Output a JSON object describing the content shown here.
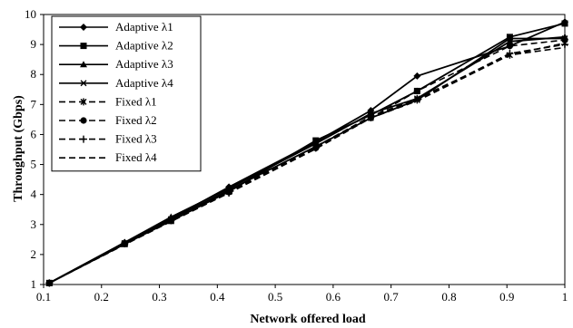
{
  "chart_data": {
    "type": "line",
    "title": "",
    "xlabel": "Network offered load",
    "ylabel": "Throughput (Gbps)",
    "xlim": [
      0.1,
      1.0
    ],
    "ylim": [
      1,
      10
    ],
    "xticks": [
      0.1,
      0.2,
      0.3,
      0.4,
      0.5,
      0.6,
      0.7,
      0.8,
      0.9,
      1.0
    ],
    "yticks": [
      1,
      2,
      3,
      4,
      5,
      6,
      7,
      8,
      9,
      10
    ],
    "xtick_labels": [
      "0.1",
      "0.2",
      "0.3",
      "0.4",
      "0.5",
      "0.6",
      "0.7",
      "0.8",
      "0.9",
      "1"
    ],
    "ytick_labels": [
      "1",
      "2",
      "3",
      "4",
      "5",
      "6",
      "7",
      "8",
      "9",
      "10"
    ],
    "grid": false,
    "legend_position": "top-left",
    "x": [
      0.11,
      0.24,
      0.32,
      0.42,
      0.57,
      0.665,
      0.745,
      0.905,
      1.0
    ],
    "series": [
      {
        "name": "Adaptive λ1",
        "marker": "diamond",
        "dash": "solid",
        "values": [
          1.05,
          2.4,
          3.2,
          4.25,
          5.75,
          6.8,
          7.95,
          8.95,
          9.75
        ]
      },
      {
        "name": "Adaptive λ2",
        "marker": "square",
        "dash": "solid",
        "values": [
          1.05,
          2.35,
          3.12,
          4.1,
          5.8,
          6.65,
          7.45,
          9.25,
          9.7
        ]
      },
      {
        "name": "Adaptive λ3",
        "marker": "triangle",
        "dash": "solid",
        "values": [
          1.05,
          2.4,
          3.25,
          4.2,
          5.7,
          6.7,
          7.2,
          9.1,
          9.25
        ]
      },
      {
        "name": "Adaptive λ4",
        "marker": "x",
        "dash": "solid",
        "values": [
          1.05,
          2.35,
          3.18,
          4.15,
          5.6,
          6.55,
          7.15,
          9.2,
          9.2
        ]
      },
      {
        "name": "Fixed λ1",
        "marker": "asterisk",
        "dash": "dashed",
        "values": [
          1.05,
          2.38,
          3.15,
          4.1,
          5.6,
          6.6,
          7.2,
          8.65,
          9.05
        ]
      },
      {
        "name": "Fixed λ2",
        "marker": "circle",
        "dash": "dashed",
        "values": [
          1.05,
          2.36,
          3.15,
          4.08,
          5.55,
          6.55,
          7.45,
          8.95,
          9.15
        ]
      },
      {
        "name": "Fixed λ3",
        "marker": "plus",
        "dash": "dashed",
        "values": [
          1.05,
          2.36,
          3.13,
          4.05,
          5.55,
          6.6,
          7.15,
          8.7,
          9.0
        ]
      },
      {
        "name": "Fixed λ4",
        "marker": "none",
        "dash": "dashed",
        "values": [
          1.05,
          2.33,
          3.1,
          4.05,
          5.52,
          6.55,
          7.12,
          8.65,
          8.9
        ]
      }
    ]
  }
}
